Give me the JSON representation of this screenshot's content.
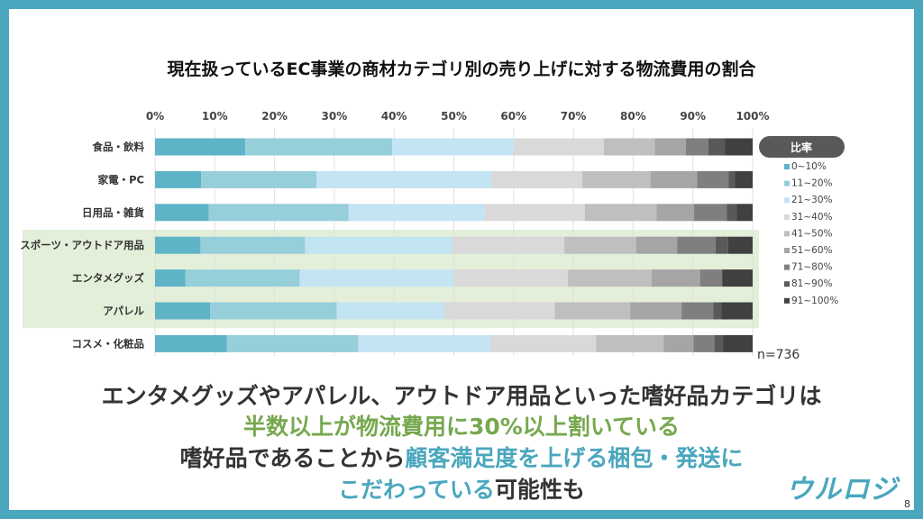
{
  "title": "現在扱っているEC事業の商材カテゴリ別の売り上げに対する物流費用の割合",
  "chart_data": {
    "type": "bar",
    "orientation": "horizontal-stacked-100",
    "title": "現在扱っているEC事業の商材カテゴリ別の売り上げに対する物流費用の割合",
    "categories": [
      "食品・飲料",
      "家電・PC",
      "日用品・雑貨",
      "スポーツ・アウトドア用品",
      "エンタメグッズ",
      "アパレル",
      "コスメ・化粧品"
    ],
    "highlighted_categories": [
      "スポーツ・アウトドア用品",
      "エンタメグッズ",
      "アパレル"
    ],
    "xlim": [
      0,
      100
    ],
    "xticks": [
      "0%",
      "10%",
      "20%",
      "30%",
      "40%",
      "50%",
      "60%",
      "70%",
      "80%",
      "90%",
      "100%"
    ],
    "grid": true,
    "legend_title": "比率",
    "legend_placement": "right",
    "series": [
      {
        "name": "0~10%",
        "color": "#5fb3c7",
        "values": [
          15.1,
          7.7,
          9.0,
          7.6,
          5.1,
          9.2,
          12.0
        ]
      },
      {
        "name": "11~20%",
        "color": "#96ceda",
        "values": [
          24.6,
          19.3,
          23.4,
          17.5,
          19.1,
          21.2,
          22.0
        ]
      },
      {
        "name": "21~30%",
        "color": "#c3e4f2",
        "values": [
          20.3,
          29.3,
          22.7,
          24.6,
          25.8,
          18.0,
          22.1
        ]
      },
      {
        "name": "31~40%",
        "color": "#d9d9d9",
        "values": [
          15.1,
          15.2,
          16.8,
          18.8,
          19.1,
          18.5,
          17.7
        ]
      },
      {
        "name": "41~50%",
        "color": "#bfbfbf",
        "values": [
          8.5,
          11.4,
          12.0,
          12.0,
          14.0,
          12.6,
          11.3
        ]
      },
      {
        "name": "51~60%",
        "color": "#a5a5a5",
        "values": [
          5.2,
          7.8,
          6.3,
          6.9,
          8.1,
          8.6,
          5.0
        ]
      },
      {
        "name": "71~80%",
        "color": "#7f7f7f",
        "values": [
          3.8,
          5.3,
          5.5,
          6.4,
          3.7,
          5.3,
          3.5
        ]
      },
      {
        "name": "81~90%",
        "color": "#595959",
        "values": [
          2.8,
          1.0,
          1.6,
          2.1,
          0,
          1.4,
          1.5
        ]
      },
      {
        "name": "91~100%",
        "color": "#404040",
        "values": [
          4.6,
          3.0,
          2.7,
          4.1,
          5.1,
          5.2,
          4.9
        ]
      }
    ],
    "annotation": "n=736"
  },
  "message": {
    "line1": "エンタメグッズやアパレル、アウトドア用品といった嗜好品カテゴリは",
    "line2": "半数以上が物流費用に30%以上割いている",
    "line3a": "嗜好品であることから",
    "line3b": "顧客満足度を上げる梱包・発送に",
    "line4a": "こだわっている",
    "line4b": "可能性も"
  },
  "logo": "ウルロジ",
  "page_number": "8",
  "colors": {
    "frame": "#4aa7bd",
    "highlight": "#e3efd9",
    "accent_green": "#76a84e",
    "accent_teal": "#4aa7bd"
  }
}
